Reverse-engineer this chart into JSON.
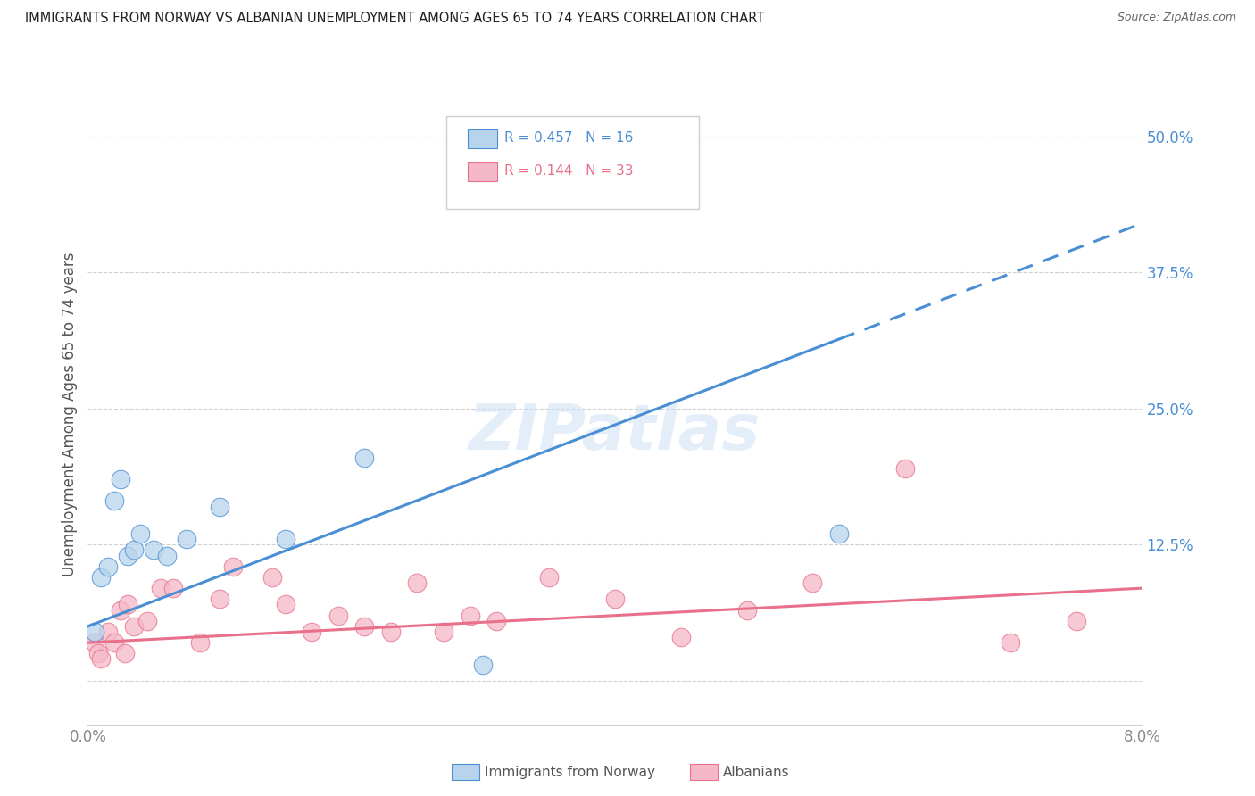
{
  "title": "IMMIGRANTS FROM NORWAY VS ALBANIAN UNEMPLOYMENT AMONG AGES 65 TO 74 YEARS CORRELATION CHART",
  "source": "Source: ZipAtlas.com",
  "ylabel": "Unemployment Among Ages 65 to 74 years",
  "norway_color": "#b8d4ed",
  "albanian_color": "#f5b8c8",
  "norway_line_color": "#4a8fd4",
  "albanian_line_color": "#e8708a",
  "norway_label": "Immigrants from Norway",
  "albanian_label": "Albanians",
  "norway_R": "0.457",
  "norway_N": "16",
  "albanian_R": "0.144",
  "albanian_N": "33",
  "xmin": 0.0,
  "xmax": 8.0,
  "ymin": -4.0,
  "ymax": 53.0,
  "yticks": [
    0.0,
    12.5,
    25.0,
    37.5,
    50.0
  ],
  "ytick_labels": [
    "",
    "12.5%",
    "25.0%",
    "37.5%",
    "50.0%"
  ],
  "norway_scatter_x": [
    0.05,
    0.1,
    0.15,
    0.2,
    0.25,
    0.3,
    0.35,
    0.4,
    0.5,
    0.6,
    0.75,
    1.0,
    1.5,
    2.1,
    5.7,
    3.0
  ],
  "norway_scatter_y": [
    4.5,
    9.5,
    10.5,
    16.5,
    18.5,
    11.5,
    12.0,
    13.5,
    12.0,
    11.5,
    13.0,
    16.0,
    13.0,
    20.5,
    13.5,
    1.5
  ],
  "albanian_scatter_x": [
    0.05,
    0.08,
    0.1,
    0.15,
    0.2,
    0.25,
    0.28,
    0.3,
    0.35,
    0.45,
    0.55,
    0.65,
    0.85,
    1.0,
    1.1,
    1.4,
    1.5,
    1.7,
    1.9,
    2.1,
    2.3,
    2.5,
    2.7,
    2.9,
    3.1,
    3.5,
    4.0,
    4.5,
    5.0,
    5.5,
    6.2,
    7.0,
    7.5
  ],
  "albanian_scatter_y": [
    3.5,
    2.5,
    2.0,
    4.5,
    3.5,
    6.5,
    2.5,
    7.0,
    5.0,
    5.5,
    8.5,
    8.5,
    3.5,
    7.5,
    10.5,
    9.5,
    7.0,
    4.5,
    6.0,
    5.0,
    4.5,
    9.0,
    4.5,
    6.0,
    5.5,
    9.5,
    7.5,
    4.0,
    6.5,
    9.0,
    19.5,
    3.5,
    5.5
  ],
  "norway_line_x0": 0.0,
  "norway_line_y0": 5.0,
  "norway_line_x1": 8.0,
  "norway_line_y1": 42.0,
  "norway_solid_end": 5.7,
  "albanian_line_x0": 0.0,
  "albanian_line_y0": 3.5,
  "albanian_line_x1": 8.0,
  "albanian_line_y1": 8.5,
  "watermark_text": "ZIPatlas",
  "background_color": "#ffffff",
  "grid_color": "#d0d0d0",
  "tick_color": "#888888",
  "label_color": "#555555",
  "title_color": "#222222",
  "legend_edge_color": "#cccccc"
}
